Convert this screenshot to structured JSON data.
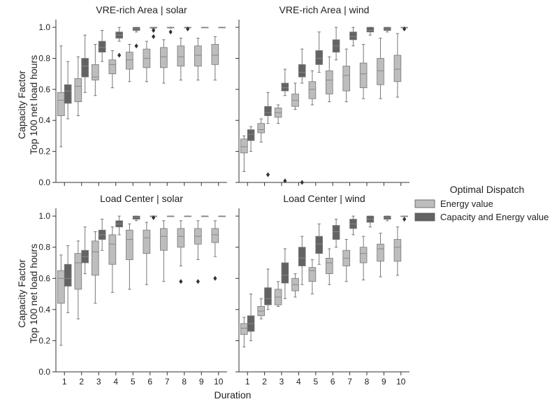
{
  "figure": {
    "xlabel": "Duration",
    "ylabel_line1": "Capacity Factor",
    "ylabel_line2": "Top 100 net load hours"
  },
  "legend": {
    "title": "Optimal Dispatch",
    "entries": [
      {
        "label": "Energy value",
        "color": "#bdbdbd"
      },
      {
        "label": "Capacity and Energy value",
        "color": "#636363"
      }
    ]
  },
  "chart_data": [
    {
      "type": "box",
      "title": "VRE-rich Area | solar",
      "categories": [
        "1",
        "2",
        "3",
        "4",
        "5",
        "6",
        "7",
        "8",
        "9",
        "10"
      ],
      "ylim": [
        0,
        1.05
      ],
      "yticks": [
        "0.0",
        "0.2",
        "0.4",
        "0.6",
        "0.8",
        "1.0"
      ],
      "series": [
        {
          "name": "Energy value",
          "color": "#bdbdbd",
          "boxes": [
            {
              "wlo": 0.23,
              "q1": 0.43,
              "med": 0.53,
              "q3": 0.58,
              "whi": 0.88,
              "out": []
            },
            {
              "wlo": 0.43,
              "q1": 0.52,
              "med": 0.62,
              "q3": 0.67,
              "whi": 0.81,
              "out": []
            },
            {
              "wlo": 0.56,
              "q1": 0.66,
              "med": 0.68,
              "q3": 0.76,
              "whi": 0.89,
              "out": []
            },
            {
              "wlo": 0.61,
              "q1": 0.7,
              "med": 0.76,
              "q3": 0.79,
              "whi": 0.85,
              "out": []
            },
            {
              "wlo": 0.65,
              "q1": 0.73,
              "med": 0.79,
              "q3": 0.84,
              "whi": 0.89,
              "out": []
            },
            {
              "wlo": 0.65,
              "q1": 0.74,
              "med": 0.8,
              "q3": 0.86,
              "whi": 0.91,
              "out": []
            },
            {
              "wlo": 0.64,
              "q1": 0.74,
              "med": 0.81,
              "q3": 0.87,
              "whi": 0.92,
              "out": []
            },
            {
              "wlo": 0.66,
              "q1": 0.75,
              "med": 0.81,
              "q3": 0.88,
              "whi": 0.93,
              "out": []
            },
            {
              "wlo": 0.66,
              "q1": 0.75,
              "med": 0.82,
              "q3": 0.88,
              "whi": 0.93,
              "out": []
            },
            {
              "wlo": 0.66,
              "q1": 0.76,
              "med": 0.82,
              "q3": 0.89,
              "whi": 0.94,
              "out": []
            }
          ]
        },
        {
          "name": "Capacity and Energy value",
          "color": "#636363",
          "boxes": [
            {
              "wlo": 0.41,
              "q1": 0.51,
              "med": 0.59,
              "q3": 0.63,
              "whi": 0.78,
              "out": []
            },
            {
              "wlo": 0.58,
              "q1": 0.68,
              "med": 0.75,
              "q3": 0.8,
              "whi": 0.95,
              "out": []
            },
            {
              "wlo": 0.78,
              "q1": 0.84,
              "med": 0.87,
              "q3": 0.91,
              "whi": 0.98,
              "out": []
            },
            {
              "wlo": 0.91,
              "q1": 0.93,
              "med": 0.95,
              "q3": 0.97,
              "whi": 1.0,
              "out": [
                0.82
              ]
            },
            {
              "wlo": 0.97,
              "q1": 0.98,
              "med": 0.99,
              "q3": 1.0,
              "whi": 1.0,
              "out": [
                0.88
              ]
            },
            {
              "wlo": 0.99,
              "q1": 0.995,
              "med": 1.0,
              "q3": 1.0,
              "whi": 1.0,
              "out": [
                0.94,
                0.98
              ]
            },
            {
              "wlo": 0.995,
              "q1": 0.998,
              "med": 1.0,
              "q3": 1.0,
              "whi": 1.0,
              "out": [
                0.97
              ]
            },
            {
              "wlo": 1.0,
              "q1": 1.0,
              "med": 1.0,
              "q3": 1.0,
              "whi": 1.0,
              "out": [
                0.99
              ]
            },
            {
              "wlo": 1.0,
              "q1": 1.0,
              "med": 1.0,
              "q3": 1.0,
              "whi": 1.0,
              "out": []
            },
            {
              "wlo": 1.0,
              "q1": 1.0,
              "med": 1.0,
              "q3": 1.0,
              "whi": 1.0,
              "out": []
            }
          ]
        }
      ]
    },
    {
      "type": "box",
      "title": "VRE-rich Area | wind",
      "categories": [
        "1",
        "2",
        "3",
        "4",
        "5",
        "6",
        "7",
        "8",
        "9",
        "10"
      ],
      "ylim": [
        0,
        1.05
      ],
      "yticks": [
        "0.0",
        "0.2",
        "0.4",
        "0.6",
        "0.8",
        "1.0"
      ],
      "series": [
        {
          "name": "Energy value",
          "color": "#bdbdbd",
          "boxes": [
            {
              "wlo": 0.07,
              "q1": 0.19,
              "med": 0.23,
              "q3": 0.28,
              "whi": 0.3,
              "out": []
            },
            {
              "wlo": 0.26,
              "q1": 0.32,
              "med": 0.34,
              "q3": 0.38,
              "whi": 0.41,
              "out": []
            },
            {
              "wlo": 0.38,
              "q1": 0.42,
              "med": 0.45,
              "q3": 0.48,
              "whi": 0.5,
              "out": []
            },
            {
              "wlo": 0.47,
              "q1": 0.49,
              "med": 0.53,
              "q3": 0.57,
              "whi": 0.64,
              "out": []
            },
            {
              "wlo": 0.5,
              "q1": 0.54,
              "med": 0.6,
              "q3": 0.65,
              "whi": 0.72,
              "out": []
            },
            {
              "wlo": 0.52,
              "q1": 0.57,
              "med": 0.66,
              "q3": 0.72,
              "whi": 0.81,
              "out": []
            },
            {
              "wlo": 0.52,
              "q1": 0.59,
              "med": 0.69,
              "q3": 0.75,
              "whi": 0.86,
              "out": []
            },
            {
              "wlo": 0.54,
              "q1": 0.61,
              "med": 0.7,
              "q3": 0.77,
              "whi": 0.89,
              "out": []
            },
            {
              "wlo": 0.54,
              "q1": 0.63,
              "med": 0.72,
              "q3": 0.8,
              "whi": 0.93,
              "out": []
            },
            {
              "wlo": 0.55,
              "q1": 0.65,
              "med": 0.73,
              "q3": 0.82,
              "whi": 0.96,
              "out": []
            }
          ]
        },
        {
          "name": "Capacity and Energy value",
          "color": "#636363",
          "boxes": [
            {
              "wlo": 0.2,
              "q1": 0.27,
              "med": 0.31,
              "q3": 0.34,
              "whi": 0.36,
              "out": []
            },
            {
              "wlo": 0.38,
              "q1": 0.43,
              "med": 0.45,
              "q3": 0.49,
              "whi": 0.58,
              "out": [
                0.05
              ]
            },
            {
              "wlo": 0.56,
              "q1": 0.59,
              "med": 0.61,
              "q3": 0.64,
              "whi": 0.73,
              "out": [
                0.01
              ]
            },
            {
              "wlo": 0.64,
              "q1": 0.68,
              "med": 0.71,
              "q3": 0.76,
              "whi": 0.86,
              "out": [
                0.0
              ]
            },
            {
              "wlo": 0.71,
              "q1": 0.76,
              "med": 0.8,
              "q3": 0.85,
              "whi": 0.97,
              "out": []
            },
            {
              "wlo": 0.79,
              "q1": 0.84,
              "med": 0.88,
              "q3": 0.92,
              "whi": 1.0,
              "out": []
            },
            {
              "wlo": 0.88,
              "q1": 0.92,
              "med": 0.94,
              "q3": 0.97,
              "whi": 1.0,
              "out": []
            },
            {
              "wlo": 0.95,
              "q1": 0.97,
              "med": 0.98,
              "q3": 1.0,
              "whi": 1.0,
              "out": []
            },
            {
              "wlo": 0.97,
              "q1": 0.98,
              "med": 0.99,
              "q3": 1.0,
              "whi": 1.0,
              "out": []
            },
            {
              "wlo": 1.0,
              "q1": 1.0,
              "med": 1.0,
              "q3": 1.0,
              "whi": 1.0,
              "out": [
                0.99
              ]
            }
          ]
        }
      ]
    },
    {
      "type": "box",
      "title": "Load Center | solar",
      "categories": [
        "1",
        "2",
        "3",
        "4",
        "5",
        "6",
        "7",
        "8",
        "9",
        "10"
      ],
      "ylim": [
        0,
        1.05
      ],
      "yticks": [
        "0.0",
        "0.2",
        "0.4",
        "0.6",
        "0.8",
        "1.0"
      ],
      "series": [
        {
          "name": "Energy value",
          "color": "#bdbdbd",
          "boxes": [
            {
              "wlo": 0.17,
              "q1": 0.44,
              "med": 0.6,
              "q3": 0.65,
              "whi": 0.75,
              "out": []
            },
            {
              "wlo": 0.34,
              "q1": 0.53,
              "med": 0.7,
              "q3": 0.76,
              "whi": 0.84,
              "out": []
            },
            {
              "wlo": 0.44,
              "q1": 0.62,
              "med": 0.77,
              "q3": 0.84,
              "whi": 0.9,
              "out": []
            },
            {
              "wlo": 0.51,
              "q1": 0.69,
              "med": 0.82,
              "q3": 0.88,
              "whi": 0.93,
              "out": []
            },
            {
              "wlo": 0.53,
              "q1": 0.72,
              "med": 0.85,
              "q3": 0.91,
              "whi": 0.95,
              "out": []
            },
            {
              "wlo": 0.56,
              "q1": 0.76,
              "med": 0.86,
              "q3": 0.91,
              "whi": 0.96,
              "out": []
            },
            {
              "wlo": 0.58,
              "q1": 0.78,
              "med": 0.87,
              "q3": 0.92,
              "whi": 0.97,
              "out": []
            },
            {
              "wlo": 0.68,
              "q1": 0.8,
              "med": 0.87,
              "q3": 0.92,
              "whi": 0.97,
              "out": [
                0.58
              ]
            },
            {
              "wlo": 0.72,
              "q1": 0.82,
              "med": 0.87,
              "q3": 0.92,
              "whi": 0.97,
              "out": [
                0.58
              ]
            },
            {
              "wlo": 0.74,
              "q1": 0.83,
              "med": 0.88,
              "q3": 0.92,
              "whi": 0.97,
              "out": [
                0.6
              ]
            }
          ]
        },
        {
          "name": "Capacity and Energy value",
          "color": "#636363",
          "boxes": [
            {
              "wlo": 0.38,
              "q1": 0.55,
              "med": 0.6,
              "q3": 0.69,
              "whi": 0.81,
              "out": []
            },
            {
              "wlo": 0.63,
              "q1": 0.7,
              "med": 0.74,
              "q3": 0.78,
              "whi": 0.93,
              "out": []
            },
            {
              "wlo": 0.78,
              "q1": 0.85,
              "med": 0.88,
              "q3": 0.91,
              "whi": 0.98,
              "out": []
            },
            {
              "wlo": 0.88,
              "q1": 0.93,
              "med": 0.95,
              "q3": 0.97,
              "whi": 1.0,
              "out": []
            },
            {
              "wlo": 0.97,
              "q1": 0.98,
              "med": 0.99,
              "q3": 1.0,
              "whi": 1.0,
              "out": []
            },
            {
              "wlo": 1.0,
              "q1": 1.0,
              "med": 1.0,
              "q3": 1.0,
              "whi": 1.0,
              "out": [
                0.99
              ]
            },
            {
              "wlo": 1.0,
              "q1": 1.0,
              "med": 1.0,
              "q3": 1.0,
              "whi": 1.0,
              "out": []
            },
            {
              "wlo": 1.0,
              "q1": 1.0,
              "med": 1.0,
              "q3": 1.0,
              "whi": 1.0,
              "out": []
            },
            {
              "wlo": 1.0,
              "q1": 1.0,
              "med": 1.0,
              "q3": 1.0,
              "whi": 1.0,
              "out": []
            },
            {
              "wlo": 1.0,
              "q1": 1.0,
              "med": 1.0,
              "q3": 1.0,
              "whi": 1.0,
              "out": []
            }
          ]
        }
      ]
    },
    {
      "type": "box",
      "title": "Load Center | wind",
      "categories": [
        "1",
        "2",
        "3",
        "4",
        "5",
        "6",
        "7",
        "8",
        "9",
        "10"
      ],
      "ylim": [
        0,
        1.05
      ],
      "yticks": [
        "0.0",
        "0.2",
        "0.4",
        "0.6",
        "0.8",
        "1.0"
      ],
      "series": [
        {
          "name": "Energy value",
          "color": "#bdbdbd",
          "boxes": [
            {
              "wlo": 0.16,
              "q1": 0.24,
              "med": 0.28,
              "q3": 0.31,
              "whi": 0.35,
              "out": []
            },
            {
              "wlo": 0.34,
              "q1": 0.36,
              "med": 0.39,
              "q3": 0.42,
              "whi": 0.47,
              "out": []
            },
            {
              "wlo": 0.42,
              "q1": 0.43,
              "med": 0.48,
              "q3": 0.53,
              "whi": 0.58,
              "out": []
            },
            {
              "wlo": 0.48,
              "q1": 0.52,
              "med": 0.56,
              "q3": 0.6,
              "whi": 0.63,
              "out": []
            },
            {
              "wlo": 0.5,
              "q1": 0.58,
              "med": 0.65,
              "q3": 0.67,
              "whi": 0.72,
              "out": []
            },
            {
              "wlo": 0.56,
              "q1": 0.63,
              "med": 0.7,
              "q3": 0.73,
              "whi": 0.79,
              "out": []
            },
            {
              "wlo": 0.58,
              "q1": 0.68,
              "med": 0.73,
              "q3": 0.78,
              "whi": 0.85,
              "out": []
            },
            {
              "wlo": 0.59,
              "q1": 0.7,
              "med": 0.76,
              "q3": 0.8,
              "whi": 0.87,
              "out": []
            },
            {
              "wlo": 0.61,
              "q1": 0.71,
              "med": 0.79,
              "q3": 0.82,
              "whi": 0.89,
              "out": []
            },
            {
              "wlo": 0.62,
              "q1": 0.71,
              "med": 0.8,
              "q3": 0.85,
              "whi": 0.93,
              "out": []
            }
          ]
        },
        {
          "name": "Capacity and Energy value",
          "color": "#636363",
          "boxes": [
            {
              "wlo": 0.2,
              "q1": 0.26,
              "med": 0.31,
              "q3": 0.36,
              "whi": 0.5,
              "out": []
            },
            {
              "wlo": 0.4,
              "q1": 0.43,
              "med": 0.47,
              "q3": 0.54,
              "whi": 0.66,
              "out": []
            },
            {
              "wlo": 0.47,
              "q1": 0.57,
              "med": 0.62,
              "q3": 0.7,
              "whi": 0.79,
              "out": []
            },
            {
              "wlo": 0.56,
              "q1": 0.68,
              "med": 0.73,
              "q3": 0.8,
              "whi": 0.87,
              "out": []
            },
            {
              "wlo": 0.69,
              "q1": 0.76,
              "med": 0.82,
              "q3": 0.87,
              "whi": 0.95,
              "out": []
            },
            {
              "wlo": 0.8,
              "q1": 0.85,
              "med": 0.9,
              "q3": 0.94,
              "whi": 0.98,
              "out": []
            },
            {
              "wlo": 0.88,
              "q1": 0.92,
              "med": 0.95,
              "q3": 0.98,
              "whi": 1.0,
              "out": []
            },
            {
              "wlo": 0.93,
              "q1": 0.96,
              "med": 0.98,
              "q3": 1.0,
              "whi": 1.0,
              "out": []
            },
            {
              "wlo": 0.97,
              "q1": 0.98,
              "med": 0.99,
              "q3": 1.0,
              "whi": 1.0,
              "out": []
            },
            {
              "wlo": 1.0,
              "q1": 1.0,
              "med": 1.0,
              "q3": 1.0,
              "whi": 1.0,
              "out": [
                0.98
              ]
            }
          ]
        }
      ]
    }
  ]
}
